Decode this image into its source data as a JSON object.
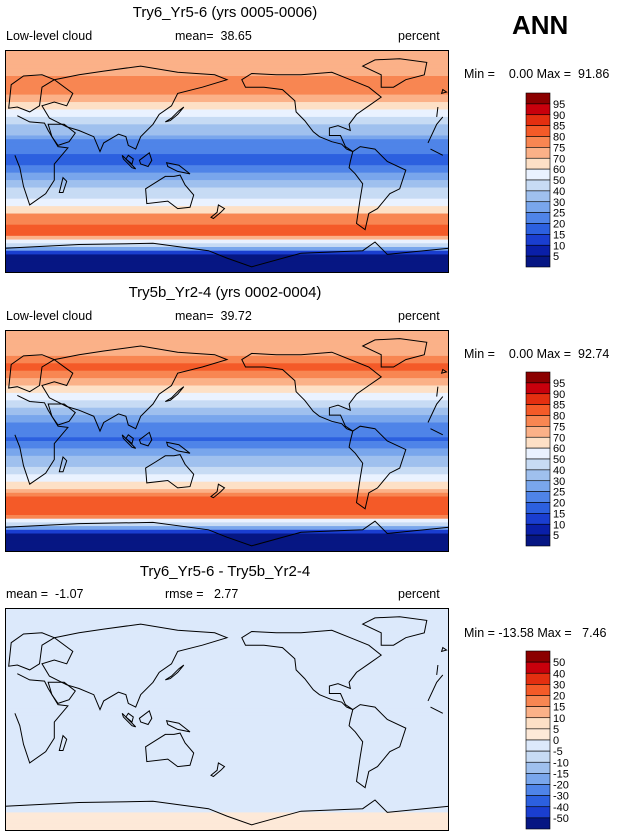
{
  "season": "ANN",
  "chart_data": [
    {
      "type": "heatmap",
      "title": "Try6_Yr5-6 (yrs 0005-0006)",
      "variable": "Low-level cloud",
      "mean_label": "mean=",
      "mean": "38.65",
      "units": "percent",
      "min_label": "Min =",
      "min": "0.00",
      "max_label": "Max =",
      "max": "91.86",
      "colorbar_levels": [
        "95",
        "90",
        "85",
        "80",
        "75",
        "70",
        "60",
        "50",
        "40",
        "30",
        "25",
        "20",
        "15",
        "10",
        "5"
      ],
      "colorbar_colors": [
        "#8b0000",
        "#c8000c",
        "#e42f10",
        "#f45a28",
        "#f88652",
        "#fbb188",
        "#fde0c6",
        "#eaf2ff",
        "#c7dbf4",
        "#9fc0ee",
        "#79a6ec",
        "#4f84e8",
        "#2c60df",
        "#1a3ed0",
        "#0a1fa8",
        "#061683"
      ],
      "zones": [
        {
          "lat": 90,
          "value": 72
        },
        {
          "lat": 75,
          "value": 70
        },
        {
          "lat": 60,
          "value": 80
        },
        {
          "lat": 45,
          "value": 68
        },
        {
          "lat": 30,
          "value": 40
        },
        {
          "lat": 15,
          "value": 22
        },
        {
          "lat": 0,
          "value": 18
        },
        {
          "lat": -15,
          "value": 30
        },
        {
          "lat": -30,
          "value": 50
        },
        {
          "lat": -45,
          "value": 78
        },
        {
          "lat": -60,
          "value": 82
        },
        {
          "lat": -75,
          "value": 5
        },
        {
          "lat": -90,
          "value": 2
        }
      ]
    },
    {
      "type": "heatmap",
      "title": "Try5b_Yr2-4 (yrs 0002-0004)",
      "variable": "Low-level cloud",
      "mean_label": "mean=",
      "mean": "39.72",
      "units": "percent",
      "min_label": "Min =",
      "min": "0.00",
      "max_label": "Max =",
      "max": "92.74",
      "colorbar_levels": [
        "95",
        "90",
        "85",
        "80",
        "75",
        "70",
        "60",
        "50",
        "40",
        "30",
        "25",
        "20",
        "15",
        "10",
        "5"
      ],
      "colorbar_colors": [
        "#8b0000",
        "#c8000c",
        "#e42f10",
        "#f45a28",
        "#f88652",
        "#fbb188",
        "#fde0c6",
        "#eaf2ff",
        "#c7dbf4",
        "#9fc0ee",
        "#79a6ec",
        "#4f84e8",
        "#2c60df",
        "#1a3ed0",
        "#0a1fa8",
        "#061683"
      ],
      "zones": [
        {
          "lat": 90,
          "value": 73
        },
        {
          "lat": 75,
          "value": 71
        },
        {
          "lat": 60,
          "value": 82
        },
        {
          "lat": 45,
          "value": 70
        },
        {
          "lat": 30,
          "value": 42
        },
        {
          "lat": 15,
          "value": 24
        },
        {
          "lat": 0,
          "value": 19
        },
        {
          "lat": -15,
          "value": 32
        },
        {
          "lat": -30,
          "value": 52
        },
        {
          "lat": -45,
          "value": 80
        },
        {
          "lat": -60,
          "value": 83
        },
        {
          "lat": -75,
          "value": 5
        },
        {
          "lat": -90,
          "value": 2
        }
      ]
    },
    {
      "type": "heatmap",
      "title": "Try6_Yr5-6 - Try5b_Yr2-4",
      "mean_label": "mean =",
      "mean": "-1.07",
      "rmse_label": "rmse =",
      "rmse": "2.77",
      "units": "percent",
      "min_label": "Min =",
      "min": "-13.58",
      "max_label": "Max =",
      "max": "7.46",
      "colorbar_levels": [
        "50",
        "40",
        "30",
        "20",
        "15",
        "10",
        "5",
        "0",
        "-5",
        "-10",
        "-15",
        "-20",
        "-30",
        "-40",
        "-50"
      ],
      "colorbar_colors": [
        "#8b0000",
        "#c8000c",
        "#e42f10",
        "#f45a28",
        "#f88652",
        "#fbb188",
        "#fde0c6",
        "#fde9d8",
        "#dce9fb",
        "#c7dbf4",
        "#9fc0ee",
        "#79a6ec",
        "#4f84e8",
        "#2c60df",
        "#1a3ed0",
        "#061683"
      ],
      "zones": [
        {
          "lat": 90,
          "value": -1
        },
        {
          "lat": 60,
          "value": -1.5
        },
        {
          "lat": 30,
          "value": -1
        },
        {
          "lat": 0,
          "value": -1
        },
        {
          "lat": -30,
          "value": -1.5
        },
        {
          "lat": -60,
          "value": -1
        },
        {
          "lat": -90,
          "value": 1
        }
      ]
    }
  ]
}
